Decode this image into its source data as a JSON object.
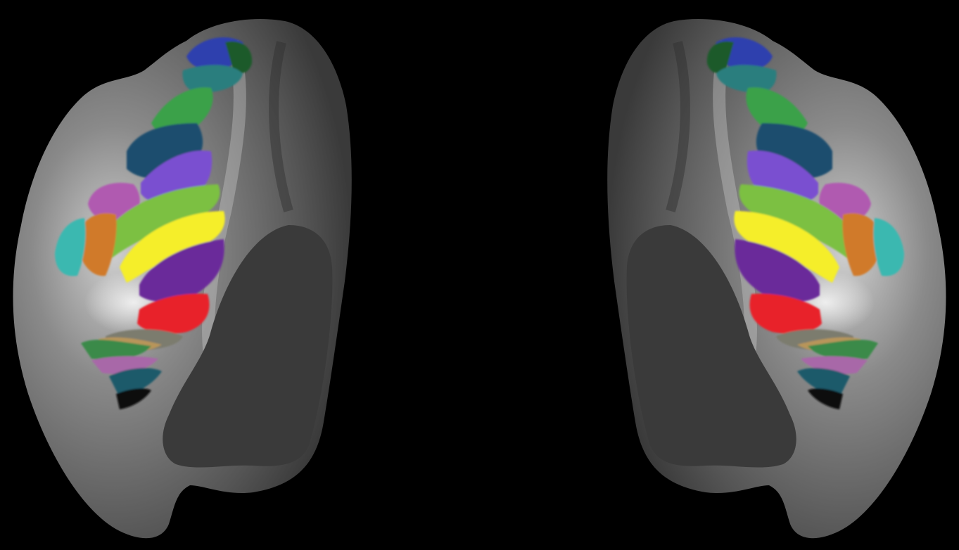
{
  "background_color": "#000000",
  "cortex": {
    "base_color": "#6e6e6e",
    "highlight_color": "#d8d8d8",
    "shadow_color": "#2a2a2a",
    "medial_wall_color": "#3b3b3b"
  },
  "hemispheres": [
    {
      "name": "left-hemisphere"
    },
    {
      "name": "right-hemisphere"
    }
  ],
  "parcel_colors": {
    "blue": "#2f3fae",
    "dark-green": "#1f5a2a",
    "teal": "#2a7e7e",
    "green": "#3aa14a",
    "slate-blue": "#1e4e6e",
    "violet": "#7a4fd0",
    "magenta": "#b05ab0",
    "light-green": "#7cc043",
    "yellow": "#f5ee2b",
    "purple": "#6a2a9a",
    "red": "#e8232a",
    "orange": "#d07a2a",
    "cyan": "#3ab8b0",
    "tan": "#b8955a",
    "gray": "#7b7b6e",
    "pink": "#b478b8",
    "black": "#111111"
  }
}
